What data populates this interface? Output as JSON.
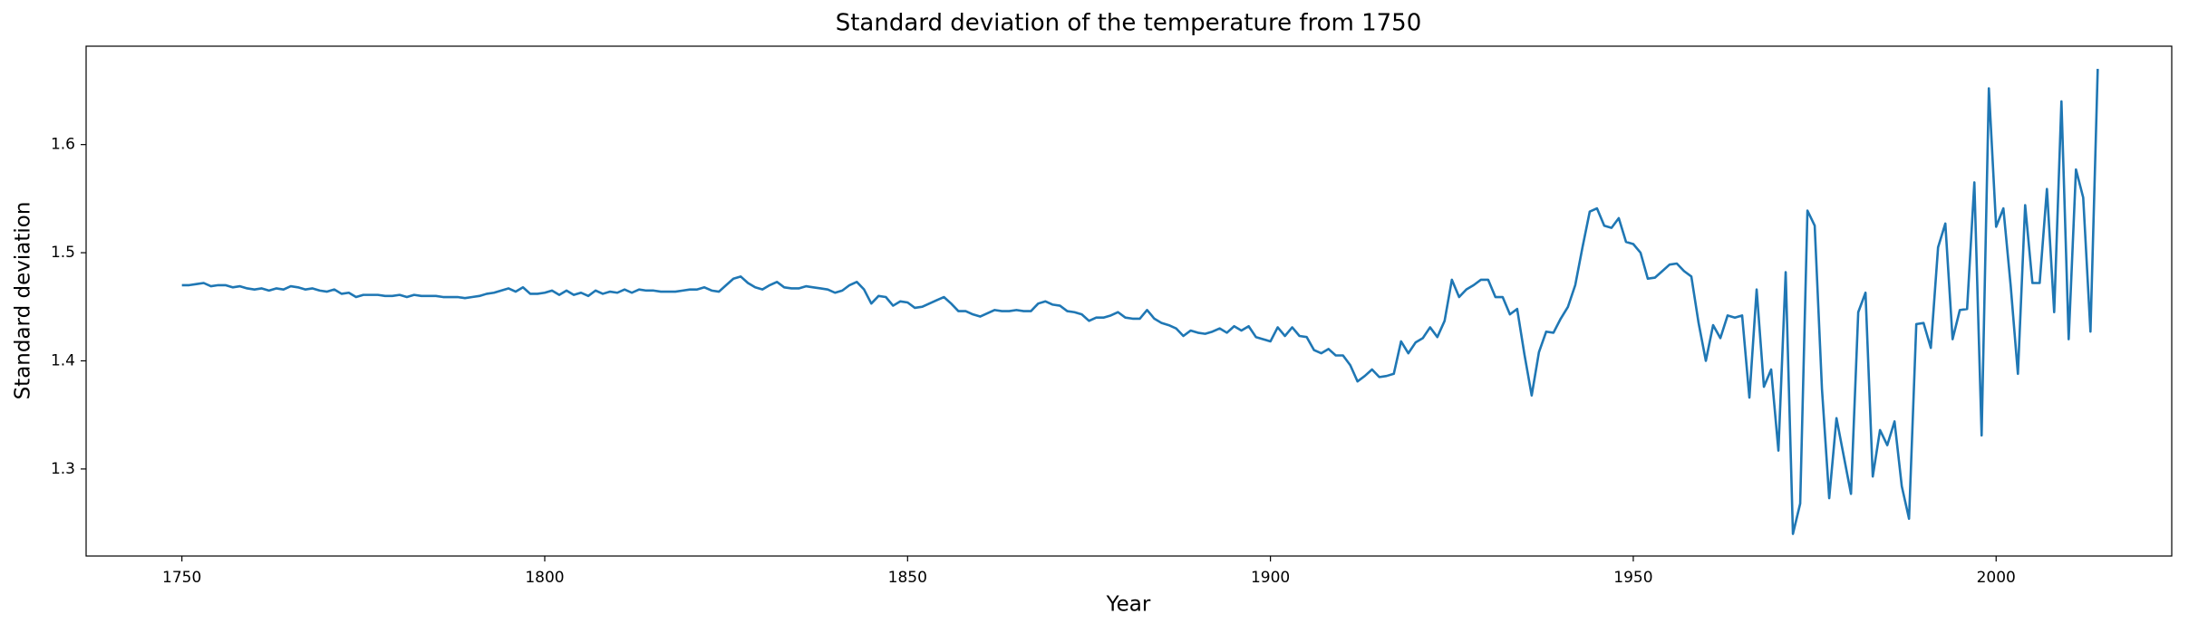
{
  "chart_data": {
    "type": "line",
    "title": "Standard deviation of the temperature from 1750",
    "xlabel": "Year",
    "ylabel": "Standard deviation",
    "x": [
      1750,
      1751,
      1752,
      1753,
      1754,
      1755,
      1756,
      1757,
      1758,
      1759,
      1760,
      1761,
      1762,
      1763,
      1764,
      1765,
      1766,
      1767,
      1768,
      1769,
      1770,
      1771,
      1772,
      1773,
      1774,
      1775,
      1776,
      1777,
      1778,
      1779,
      1780,
      1781,
      1782,
      1783,
      1784,
      1785,
      1786,
      1787,
      1788,
      1789,
      1790,
      1791,
      1792,
      1793,
      1794,
      1795,
      1796,
      1797,
      1798,
      1799,
      1800,
      1801,
      1802,
      1803,
      1804,
      1805,
      1806,
      1807,
      1808,
      1809,
      1810,
      1811,
      1812,
      1813,
      1814,
      1815,
      1816,
      1817,
      1818,
      1819,
      1820,
      1821,
      1822,
      1823,
      1824,
      1825,
      1826,
      1827,
      1828,
      1829,
      1830,
      1831,
      1832,
      1833,
      1834,
      1835,
      1836,
      1837,
      1838,
      1839,
      1840,
      1841,
      1842,
      1843,
      1844,
      1845,
      1846,
      1847,
      1848,
      1849,
      1850,
      1851,
      1852,
      1853,
      1854,
      1855,
      1856,
      1857,
      1858,
      1859,
      1860,
      1861,
      1862,
      1863,
      1864,
      1865,
      1866,
      1867,
      1868,
      1869,
      1870,
      1871,
      1872,
      1873,
      1874,
      1875,
      1876,
      1877,
      1878,
      1879,
      1880,
      1881,
      1882,
      1883,
      1884,
      1885,
      1886,
      1887,
      1888,
      1889,
      1890,
      1891,
      1892,
      1893,
      1894,
      1895,
      1896,
      1897,
      1898,
      1899,
      1900,
      1901,
      1902,
      1903,
      1904,
      1905,
      1906,
      1907,
      1908,
      1909,
      1910,
      1911,
      1912,
      1913,
      1914,
      1915,
      1916,
      1917,
      1918,
      1919,
      1920,
      1921,
      1922,
      1923,
      1924,
      1925,
      1926,
      1927,
      1928,
      1929,
      1930,
      1931,
      1932,
      1933,
      1934,
      1935,
      1936,
      1937,
      1938,
      1939,
      1940,
      1941,
      1942,
      1943,
      1944,
      1945,
      1946,
      1947,
      1948,
      1949,
      1950,
      1951,
      1952,
      1953,
      1954,
      1955,
      1956,
      1957,
      1958,
      1959,
      1960,
      1961,
      1962,
      1963,
      1964,
      1965,
      1966,
      1967,
      1968,
      1969,
      1970,
      1971,
      1972,
      1973,
      1974,
      1975,
      1976,
      1977,
      1978,
      1979,
      1980,
      1981,
      1982,
      1983,
      1984,
      1985,
      1986,
      1987,
      1988,
      1989,
      1990,
      1991,
      1992,
      1993,
      1994,
      1995,
      1996,
      1997,
      1998,
      1999,
      2000,
      2001,
      2002,
      2003,
      2004,
      2005,
      2006,
      2007,
      2008,
      2009,
      2010,
      2011,
      2012,
      2013,
      2014
    ],
    "series": [
      {
        "name": "Standard deviation",
        "color": "#1f77b4",
        "values": [
          1.47,
          1.47,
          1.471,
          1.472,
          1.469,
          1.47,
          1.47,
          1.468,
          1.469,
          1.467,
          1.466,
          1.467,
          1.465,
          1.467,
          1.466,
          1.469,
          1.468,
          1.466,
          1.467,
          1.465,
          1.464,
          1.466,
          1.462,
          1.463,
          1.459,
          1.461,
          1.461,
          1.461,
          1.46,
          1.46,
          1.461,
          1.459,
          1.461,
          1.46,
          1.46,
          1.46,
          1.459,
          1.459,
          1.459,
          1.458,
          1.459,
          1.46,
          1.462,
          1.463,
          1.465,
          1.467,
          1.464,
          1.468,
          1.462,
          1.462,
          1.463,
          1.465,
          1.461,
          1.465,
          1.461,
          1.463,
          1.46,
          1.465,
          1.462,
          1.464,
          1.463,
          1.466,
          1.463,
          1.466,
          1.465,
          1.465,
          1.464,
          1.464,
          1.464,
          1.465,
          1.466,
          1.466,
          1.468,
          1.465,
          1.464,
          1.47,
          1.476,
          1.478,
          1.472,
          1.468,
          1.466,
          1.47,
          1.473,
          1.468,
          1.467,
          1.467,
          1.469,
          1.468,
          1.467,
          1.466,
          1.463,
          1.465,
          1.47,
          1.473,
          1.466,
          1.453,
          1.46,
          1.459,
          1.451,
          1.455,
          1.454,
          1.449,
          1.45,
          1.453,
          1.456,
          1.459,
          1.453,
          1.446,
          1.446,
          1.443,
          1.441,
          1.444,
          1.447,
          1.446,
          1.446,
          1.447,
          1.446,
          1.446,
          1.453,
          1.455,
          1.452,
          1.451,
          1.446,
          1.445,
          1.443,
          1.437,
          1.44,
          1.44,
          1.442,
          1.445,
          1.44,
          1.439,
          1.439,
          1.447,
          1.439,
          1.435,
          1.433,
          1.43,
          1.423,
          1.428,
          1.426,
          1.425,
          1.427,
          1.43,
          1.426,
          1.432,
          1.428,
          1.432,
          1.422,
          1.42,
          1.418,
          1.431,
          1.423,
          1.431,
          1.423,
          1.422,
          1.41,
          1.407,
          1.411,
          1.405,
          1.405,
          1.396,
          1.381,
          1.386,
          1.392,
          1.385,
          1.386,
          1.388,
          1.418,
          1.407,
          1.417,
          1.421,
          1.431,
          1.422,
          1.437,
          1.475,
          1.459,
          1.466,
          1.47,
          1.475,
          1.475,
          1.459,
          1.459,
          1.443,
          1.448,
          1.406,
          1.368,
          1.408,
          1.427,
          1.426,
          1.439,
          1.45,
          1.47,
          1.505,
          1.538,
          1.541,
          1.525,
          1.523,
          1.532,
          1.51,
          1.508,
          1.5,
          1.476,
          1.477,
          1.483,
          1.489,
          1.49,
          1.483,
          1.478,
          1.435,
          1.4,
          1.433,
          1.421,
          1.442,
          1.44,
          1.442,
          1.366,
          1.466,
          1.376,
          1.392,
          1.317,
          1.482,
          1.24,
          1.268,
          1.539,
          1.525,
          1.374,
          1.273,
          1.347,
          1.312,
          1.277,
          1.445,
          1.463,
          1.293,
          1.336,
          1.322,
          1.344,
          1.284,
          1.254,
          1.434,
          1.435,
          1.412,
          1.505,
          1.527,
          1.42,
          1.447,
          1.448,
          1.565,
          1.331,
          1.652,
          1.524,
          1.541,
          1.47,
          1.388,
          1.544,
          1.472,
          1.472,
          1.559,
          1.445,
          1.64,
          1.42,
          1.577,
          1.551,
          1.427,
          1.67
        ]
      }
    ],
    "xlim": [
      1736.8,
      2024.2
    ],
    "xticks": [
      1750,
      1800,
      1850,
      1900,
      1950,
      2000
    ],
    "ylim": [
      1.2195,
      1.691
    ],
    "yticks": [
      1.3,
      1.4,
      1.5,
      1.6
    ],
    "grid": false
  }
}
